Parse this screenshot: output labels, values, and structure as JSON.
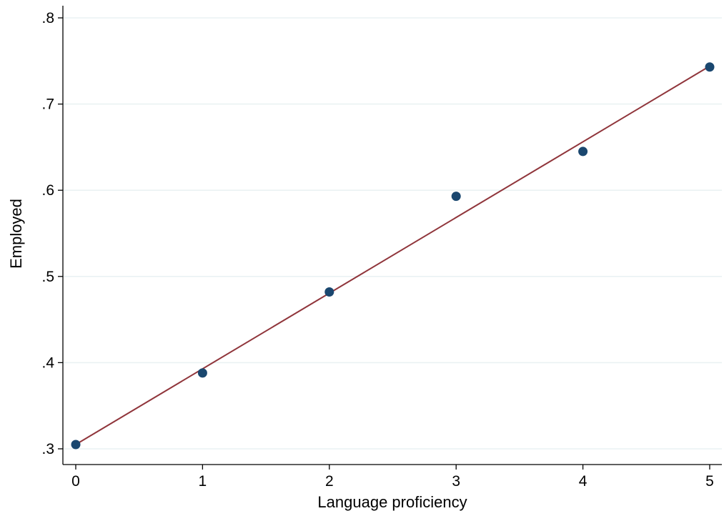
{
  "chart_data": {
    "type": "scatter",
    "xlabel": "Language proficiency",
    "ylabel": "Employed",
    "xlim": [
      0,
      5
    ],
    "ylim": [
      0.3,
      0.8
    ],
    "grid": true,
    "x_ticks": [
      0,
      1,
      2,
      3,
      4,
      5
    ],
    "x_tick_labels": [
      "0",
      "1",
      "2",
      "3",
      "4",
      "5"
    ],
    "y_ticks": [
      0.3,
      0.4,
      0.5,
      0.6,
      0.7,
      0.8
    ],
    "y_tick_labels": [
      ".3",
      ".4",
      ".5",
      ".6",
      ".7",
      ".8"
    ],
    "series": [
      {
        "type": "scatter",
        "x": [
          0,
          1,
          2,
          3,
          4,
          5
        ],
        "y": [
          0.305,
          0.388,
          0.482,
          0.593,
          0.645,
          0.743
        ],
        "color": "#1a476f"
      },
      {
        "type": "line",
        "x": [
          0,
          5
        ],
        "y": [
          0.305,
          0.744
        ],
        "color": "#90353b"
      }
    ],
    "colors": {
      "grid": "#eaf2f3",
      "axis": "#000000"
    }
  }
}
